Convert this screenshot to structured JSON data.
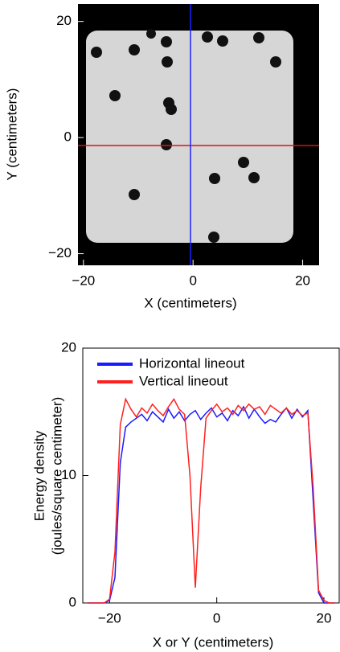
{
  "chart_data": [
    {
      "type": "image",
      "xlabel": "X (centimeters)",
      "ylabel": "Y (centimeters)",
      "xlim": [
        -21,
        23
      ],
      "ylim": [
        -22,
        23
      ],
      "xticks": [
        {
          "value": -20,
          "label": "−20"
        },
        0,
        20
      ],
      "yticks": [
        {
          "value": -20,
          "label": "−20"
        },
        0,
        20
      ]
    },
    {
      "type": "line",
      "xlabel": "X or Y (centimeters)",
      "ylabel": [
        "Energy density",
        "(joules/square centimeter)"
      ],
      "xlim": [
        -25,
        23
      ],
      "ylim": [
        0,
        20
      ],
      "xticks": [
        {
          "value": -20,
          "label": "−20"
        },
        0,
        20
      ],
      "yticks": [
        0,
        10,
        20
      ],
      "x": [
        -24,
        -23,
        -22,
        -21,
        -20,
        -19,
        -18,
        -17,
        -16,
        -15,
        -14,
        -13,
        -12,
        -11,
        -10,
        -9,
        -8,
        -7,
        -6,
        -5,
        -4,
        -3,
        -2,
        -1,
        0,
        1,
        2,
        3,
        4,
        5,
        6,
        7,
        8,
        9,
        10,
        11,
        12,
        13,
        14,
        15,
        16,
        17,
        18,
        19,
        20,
        21,
        22
      ],
      "series": [
        {
          "name": "Horizontal lineout",
          "color": "#1a1aff",
          "values": [
            0,
            0,
            0,
            0,
            0.2,
            2,
            11,
            13.8,
            14.2,
            14.5,
            14.8,
            14.3,
            15,
            14.6,
            14.2,
            15.2,
            14.5,
            15,
            14.3,
            14.8,
            15.1,
            14.4,
            14.9,
            15.3,
            14.6,
            14.9,
            14.3,
            15.1,
            14.7,
            15.4,
            14.5,
            15.2,
            14.6,
            14.1,
            14.4,
            14.2,
            14.8,
            15.3,
            14.5,
            15.2,
            14.6,
            15.1,
            8,
            0.8,
            0,
            0,
            0
          ]
        },
        {
          "name": "Vertical lineout",
          "color": "#ff2020",
          "values": [
            0,
            0,
            0,
            0,
            0.3,
            4,
            14,
            16,
            15.2,
            14.6,
            15.3,
            14.9,
            15.6,
            15.1,
            14.7,
            15.4,
            16,
            15.2,
            14.8,
            10,
            1.2,
            9,
            14.5,
            15.1,
            15.6,
            15,
            15.3,
            14.8,
            15.5,
            15.1,
            15.6,
            15.2,
            15.4,
            14.8,
            15.5,
            15.2,
            14.9,
            15.3,
            14.8,
            15.1,
            14.7,
            14.9,
            9,
            1,
            0.2,
            0,
            0
          ]
        }
      ]
    }
  ]
}
